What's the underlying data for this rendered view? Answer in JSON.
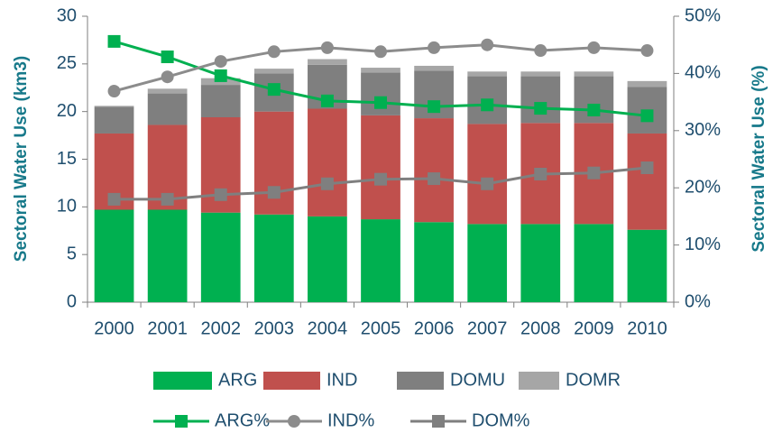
{
  "chart_data": {
    "type": "bar",
    "stacked": true,
    "ylabel": "Sectoral Water Use (km3)",
    "y2label": "Sectoral Water Use (%)",
    "categories": [
      "2000",
      "2001",
      "2002",
      "2003",
      "2004",
      "2005",
      "2006",
      "2007",
      "2008",
      "2009",
      "2010"
    ],
    "ylim": [
      0,
      30
    ],
    "yticks": [
      0,
      5,
      10,
      15,
      20,
      25,
      30
    ],
    "y2lim": [
      0,
      50
    ],
    "y2ticks": [
      {
        "value": 0,
        "label": "0%"
      },
      {
        "value": 10,
        "label": "10%"
      },
      {
        "value": 20,
        "label": "20%"
      },
      {
        "value": 30,
        "label": "30%"
      },
      {
        "value": 40,
        "label": "40%"
      },
      {
        "value": 50,
        "label": "50%"
      }
    ],
    "grid": false,
    "legend": "bottom",
    "series": [
      {
        "name": "ARG",
        "type": "bar",
        "color": "#00b050",
        "values": [
          9.7,
          9.7,
          9.4,
          9.2,
          9.0,
          8.7,
          8.4,
          8.2,
          8.2,
          8.2,
          7.6
        ]
      },
      {
        "name": "IND",
        "type": "bar",
        "color": "#c0504d",
        "values": [
          8.0,
          8.9,
          10.0,
          10.8,
          11.3,
          10.9,
          10.9,
          10.5,
          10.6,
          10.6,
          10.1
        ]
      },
      {
        "name": "DOMU",
        "type": "bar",
        "color": "#7f7f7f",
        "values": [
          2.8,
          3.3,
          3.4,
          4.0,
          4.6,
          4.5,
          5.0,
          5.0,
          4.9,
          4.9,
          4.9
        ]
      },
      {
        "name": "DOMR",
        "type": "bar",
        "color": "#a6a6a6",
        "values": [
          0.1,
          0.5,
          0.7,
          0.5,
          0.6,
          0.5,
          0.5,
          0.5,
          0.5,
          0.5,
          0.6
        ]
      },
      {
        "name": "ARG%",
        "type": "line",
        "axis": "y2",
        "marker": "square",
        "color": "#00b050",
        "values": [
          45.6,
          42.9,
          39.6,
          37.2,
          35.2,
          34.9,
          34.2,
          34.5,
          33.9,
          33.6,
          32.6
        ]
      },
      {
        "name": "IND%",
        "type": "line",
        "axis": "y2",
        "marker": "circle",
        "color": "#8c8c8c",
        "values": [
          36.9,
          39.4,
          42.1,
          43.8,
          44.5,
          43.8,
          44.5,
          45.0,
          44.0,
          44.5,
          44.0
        ]
      },
      {
        "name": "DOM%",
        "type": "line",
        "axis": "y2",
        "marker": "square",
        "color": "#7f7f7f",
        "values": [
          18.0,
          18.0,
          18.8,
          19.2,
          20.7,
          21.5,
          21.6,
          20.7,
          22.4,
          22.6,
          23.5
        ]
      }
    ]
  }
}
